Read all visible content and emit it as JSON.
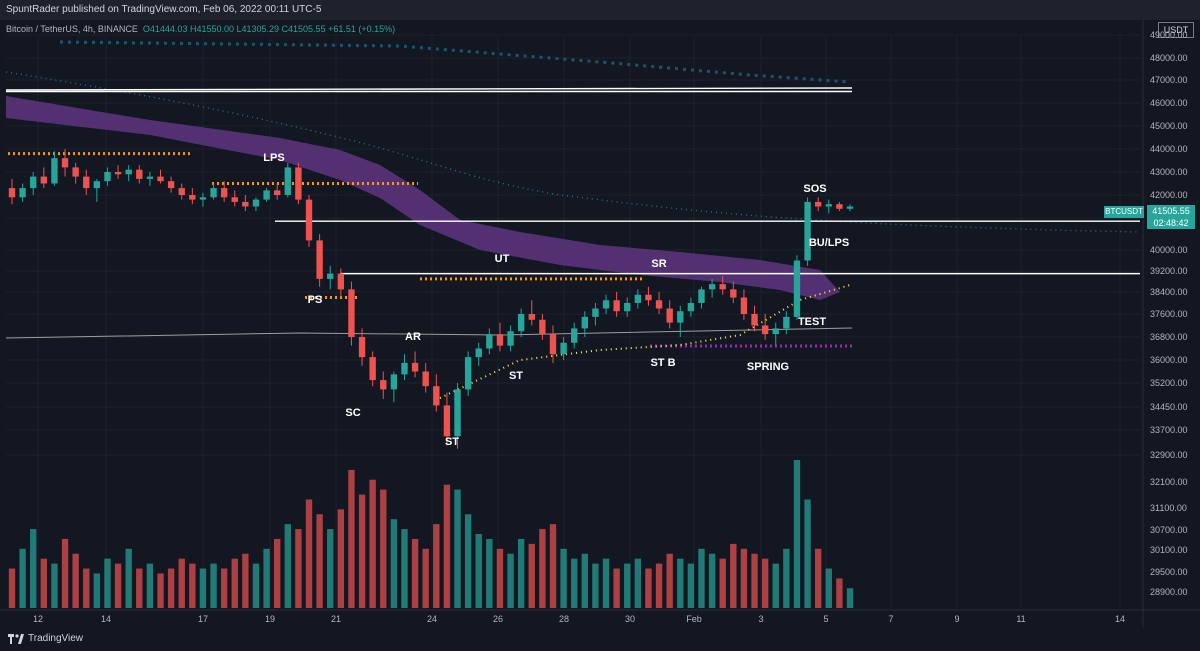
{
  "header": {
    "published": "SpuntRader published on TradingView.com, Feb 06, 2022 00:11 UTC-5",
    "symbol": "Bitcoin / TetherUS, 4h, BINANCE",
    "ohlc": "O41444.03  H41550.00  L41305.29  C41505.55  +61.51 (+0.15%)",
    "currency": "USDT"
  },
  "price_tag": {
    "symbol": "BTCUSDT",
    "price": "41505.55",
    "countdown": "02:48:42"
  },
  "footer": {
    "brand": "TradingView"
  },
  "colors": {
    "up": "#26a69a",
    "down": "#ef5350",
    "bg": "#131722",
    "band": "#6a3a8c",
    "orange": "#ff9800",
    "purple": "#9c27b0",
    "yellow": "#ffeb3b",
    "blue": "#2962ff"
  },
  "chart_data": {
    "type": "candlestick",
    "y_axis_labels": [
      "49000.00",
      "48000.00",
      "47000.00",
      "46000.00",
      "45000.00",
      "44000.00",
      "43000.00",
      "42000.00",
      "41000.00",
      "40000.00",
      "39200.00",
      "38400.00",
      "37600.00",
      "36800.00",
      "36000.00",
      "35200.00",
      "34450.00",
      "33700.00",
      "32900.00",
      "32100.00",
      "31100.00",
      "30700.00",
      "30100.00",
      "29500.00",
      "28900.00"
    ],
    "x_axis_labels": [
      "12",
      "14",
      "17",
      "19",
      "21",
      "24",
      "26",
      "28",
      "30",
      "Feb",
      "3",
      "5",
      "7",
      "9",
      "11",
      "14"
    ],
    "annotations": [
      {
        "text": "LPS"
      },
      {
        "text": "PS"
      },
      {
        "text": "SC"
      },
      {
        "text": "AR"
      },
      {
        "text": "ST"
      },
      {
        "text": "UT"
      },
      {
        "text": "ST"
      },
      {
        "text": "SR"
      },
      {
        "text": "ST B"
      },
      {
        "text": "SPRING"
      },
      {
        "text": "TEST"
      },
      {
        "text": "SOS"
      },
      {
        "text": "BU/LPS"
      }
    ],
    "horizontal_lines": [
      46500,
      40900,
      39100
    ],
    "candles": [
      [
        42300,
        42700,
        41600,
        41900
      ],
      [
        41900,
        42500,
        41700,
        42300
      ],
      [
        42300,
        43000,
        42000,
        42800
      ],
      [
        42800,
        43200,
        42300,
        42500
      ],
      [
        42500,
        43900,
        42400,
        43600
      ],
      [
        43600,
        44000,
        42800,
        43200
      ],
      [
        43200,
        43400,
        42500,
        42800
      ],
      [
        42800,
        43100,
        42000,
        42300
      ],
      [
        42300,
        42700,
        41700,
        42600
      ],
      [
        42600,
        43200,
        42400,
        43000
      ],
      [
        43000,
        43300,
        42700,
        42900
      ],
      [
        42900,
        43300,
        42600,
        43100
      ],
      [
        43100,
        43300,
        42500,
        42700
      ],
      [
        42700,
        43000,
        42400,
        42800
      ],
      [
        42800,
        43100,
        42500,
        42600
      ],
      [
        42600,
        42800,
        42100,
        42300
      ],
      [
        42300,
        42500,
        41800,
        42000
      ],
      [
        42000,
        42300,
        41600,
        41800
      ],
      [
        41800,
        42100,
        41500,
        41900
      ],
      [
        41900,
        42500,
        41800,
        42300
      ],
      [
        42300,
        42600,
        41700,
        41900
      ],
      [
        41900,
        42200,
        41500,
        41700
      ],
      [
        41700,
        42000,
        41300,
        41500
      ],
      [
        41500,
        41900,
        41300,
        41800
      ],
      [
        41800,
        42300,
        41700,
        42200
      ],
      [
        42200,
        42500,
        41800,
        42000
      ],
      [
        42000,
        43400,
        41900,
        43200
      ],
      [
        43200,
        43400,
        41600,
        41800
      ],
      [
        41800,
        42000,
        40100,
        40300
      ],
      [
        40300,
        40500,
        38600,
        38900
      ],
      [
        38900,
        39400,
        38500,
        39100
      ],
      [
        39100,
        39300,
        38200,
        38500
      ],
      [
        38500,
        38800,
        36500,
        36800
      ],
      [
        36800,
        37100,
        35800,
        36100
      ],
      [
        36100,
        36300,
        35100,
        35300
      ],
      [
        35300,
        35600,
        34700,
        35000
      ],
      [
        35000,
        35600,
        34600,
        35500
      ],
      [
        35500,
        36200,
        35300,
        35900
      ],
      [
        35900,
        36300,
        35400,
        35600
      ],
      [
        35600,
        35900,
        34900,
        35100
      ],
      [
        35100,
        35500,
        34300,
        34500
      ],
      [
        34500,
        34900,
        33200,
        33500
      ],
      [
        33500,
        35200,
        33100,
        35000
      ],
      [
        35000,
        36300,
        34800,
        36100
      ],
      [
        36100,
        36600,
        35800,
        36400
      ],
      [
        36400,
        37100,
        36200,
        36900
      ],
      [
        36900,
        37300,
        36300,
        36500
      ],
      [
        36500,
        37200,
        36300,
        37000
      ],
      [
        37000,
        37800,
        36800,
        37600
      ],
      [
        37600,
        38100,
        37200,
        37400
      ],
      [
        37400,
        37600,
        36700,
        36900
      ],
      [
        36900,
        37200,
        35900,
        36200
      ],
      [
        36200,
        36800,
        36000,
        36600
      ],
      [
        36600,
        37300,
        36400,
        37100
      ],
      [
        37100,
        37700,
        36800,
        37500
      ],
      [
        37500,
        38000,
        37200,
        37800
      ],
      [
        37800,
        38300,
        37600,
        38100
      ],
      [
        38100,
        38400,
        37500,
        37700
      ],
      [
        37700,
        38200,
        37500,
        38000
      ],
      [
        38000,
        38500,
        37800,
        38300
      ],
      [
        38300,
        38600,
        37900,
        38100
      ],
      [
        38100,
        38400,
        37600,
        37800
      ],
      [
        37800,
        38100,
        37100,
        37300
      ],
      [
        37300,
        37900,
        36800,
        37700
      ],
      [
        37700,
        38200,
        37500,
        38000
      ],
      [
        38000,
        38600,
        37800,
        38500
      ],
      [
        38500,
        38900,
        38200,
        38700
      ],
      [
        38700,
        39000,
        38300,
        38500
      ],
      [
        38500,
        38800,
        38000,
        38200
      ],
      [
        38200,
        38500,
        37400,
        37600
      ],
      [
        37600,
        37900,
        37000,
        37200
      ],
      [
        37200,
        37600,
        36700,
        36900
      ],
      [
        36900,
        37300,
        36500,
        37100
      ],
      [
        37100,
        37700,
        36900,
        37500
      ],
      [
        37500,
        39800,
        37400,
        39600
      ],
      [
        39600,
        41900,
        39400,
        41700
      ],
      [
        41700,
        41900,
        41300,
        41500
      ],
      [
        41500,
        41800,
        41200,
        41600
      ],
      [
        41600,
        41700,
        41300,
        41400
      ],
      [
        41400,
        41600,
        41300,
        41500
      ]
    ],
    "volumes": [
      40,
      60,
      80,
      50,
      45,
      70,
      55,
      40,
      35,
      50,
      45,
      60,
      40,
      45,
      35,
      40,
      50,
      45,
      40,
      45,
      40,
      50,
      55,
      45,
      60,
      70,
      85,
      80,
      110,
      95,
      80,
      100,
      140,
      115,
      130,
      120,
      90,
      80,
      70,
      60,
      85,
      125,
      120,
      95,
      75,
      70,
      60,
      55,
      70,
      65,
      80,
      85,
      60,
      50,
      55,
      45,
      50,
      40,
      45,
      50,
      40,
      45,
      55,
      50,
      45,
      60,
      55,
      50,
      65,
      60,
      55,
      50,
      45,
      60,
      150,
      110,
      60,
      40,
      30,
      20
    ]
  }
}
